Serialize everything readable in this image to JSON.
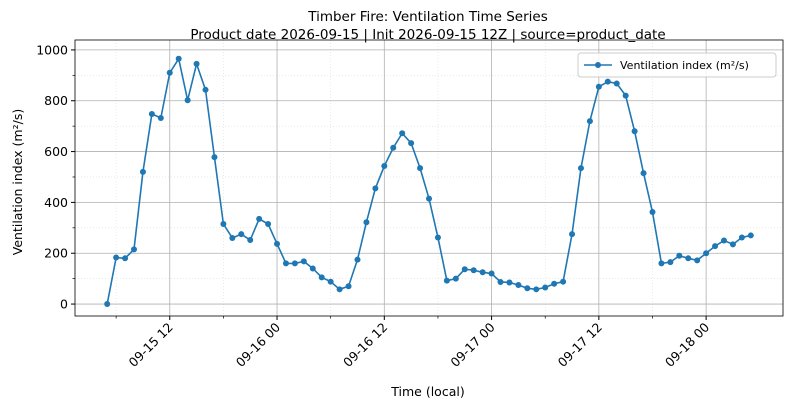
{
  "chart_data": {
    "type": "line",
    "title": "Timber Fire: Ventilation Time Series",
    "subtitle": "Product date 2026-09-15 | Init 2026-09-15 12Z | source=product_date",
    "x_label": "Time (local)",
    "y_label": "Ventilation index (m²/s)",
    "x": [
      "09-15 05",
      "09-15 06",
      "09-15 07",
      "09-15 08",
      "09-15 09",
      "09-15 10",
      "09-15 11",
      "09-15 12",
      "09-15 13",
      "09-15 14",
      "09-15 15",
      "09-15 16",
      "09-15 17",
      "09-15 18",
      "09-15 19",
      "09-15 20",
      "09-15 21",
      "09-15 22",
      "09-15 23",
      "09-16 00",
      "09-16 01",
      "09-16 02",
      "09-16 03",
      "09-16 04",
      "09-16 05",
      "09-16 06",
      "09-16 07",
      "09-16 08",
      "09-16 09",
      "09-16 10",
      "09-16 11",
      "09-16 12",
      "09-16 13",
      "09-16 14",
      "09-16 15",
      "09-16 16",
      "09-16 17",
      "09-16 18",
      "09-16 19",
      "09-16 20",
      "09-16 21",
      "09-16 22",
      "09-16 23",
      "09-17 00",
      "09-17 01",
      "09-17 02",
      "09-17 03",
      "09-17 04",
      "09-17 05",
      "09-17 06",
      "09-17 07",
      "09-17 08",
      "09-17 09",
      "09-17 10",
      "09-17 11",
      "09-17 12",
      "09-17 13",
      "09-17 14",
      "09-17 15",
      "09-17 16",
      "09-17 17",
      "09-17 18",
      "09-17 19",
      "09-17 20",
      "09-17 21",
      "09-17 22",
      "09-17 23",
      "09-18 00",
      "09-18 01",
      "09-18 02",
      "09-18 03",
      "09-18 04",
      "09-18 05"
    ],
    "series": [
      {
        "name": "Ventilation index (m²/s)",
        "color": "#1f77b4",
        "values": [
          0,
          183,
          180,
          215,
          520,
          748,
          732,
          910,
          965,
          802,
          945,
          843,
          578,
          315,
          260,
          275,
          252,
          335,
          315,
          237,
          160,
          160,
          168,
          140,
          105,
          88,
          58,
          70,
          175,
          322,
          455,
          543,
          615,
          672,
          633,
          535,
          415,
          262,
          92,
          100,
          137,
          133,
          125,
          120,
          87,
          85,
          75,
          62,
          58,
          65,
          80,
          88,
          275,
          535,
          720,
          855,
          875,
          868,
          820,
          680,
          515,
          362,
          160,
          165,
          190,
          180,
          172,
          200,
          228,
          250,
          235,
          262,
          270
        ]
      }
    ],
    "xticks": [
      "09-15 12",
      "09-16 00",
      "09-16 12",
      "09-17 00",
      "09-17 12",
      "09-18 00"
    ],
    "ylim": [
      -47,
      1039
    ],
    "yticks": [
      0,
      200,
      400,
      600,
      800,
      1000
    ],
    "grid": true,
    "legend": "upper right"
  }
}
